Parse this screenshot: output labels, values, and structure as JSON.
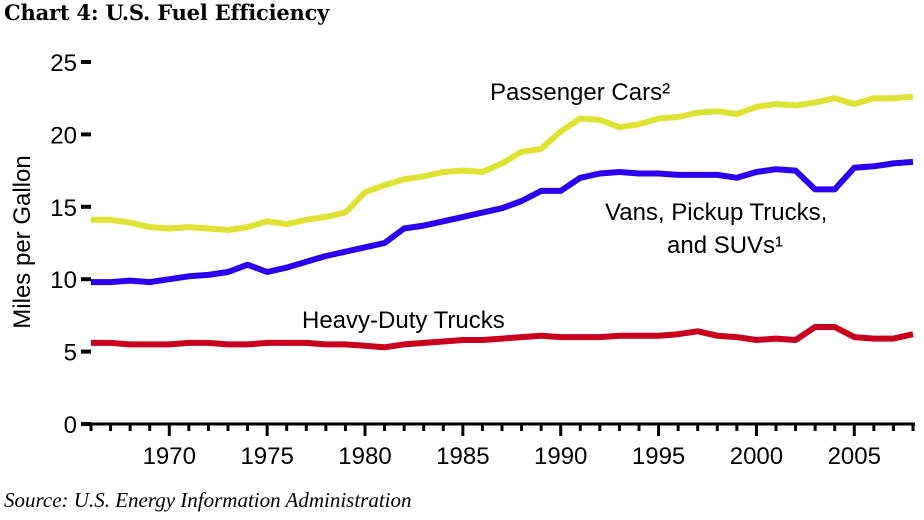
{
  "header": {
    "title": "Chart 4:  U.S. Fuel Efficiency"
  },
  "footer": {
    "source": "Source: U.S. Energy Information Administration"
  },
  "chart_data": {
    "type": "line",
    "title": "Chart 4:  U.S. Fuel Efficiency",
    "xlabel": "",
    "ylabel": "Miles per Gallon",
    "xlim": [
      1966,
      2008
    ],
    "ylim": [
      0,
      25
    ],
    "grid": false,
    "legend": "inline labels",
    "yticks": [
      "0",
      "5",
      "10",
      "15",
      "20",
      "25"
    ],
    "ytick_values": [
      0,
      5,
      10,
      15,
      20,
      25
    ],
    "xticks": [
      "1970",
      "1975",
      "1980",
      "1985",
      "1990",
      "1995",
      "2000",
      "2005"
    ],
    "xtick_values": [
      1970,
      1975,
      1980,
      1985,
      1990,
      1995,
      2000,
      2005
    ],
    "x": [
      1966,
      1967,
      1968,
      1969,
      1970,
      1971,
      1972,
      1973,
      1974,
      1975,
      1976,
      1977,
      1978,
      1979,
      1980,
      1981,
      1982,
      1983,
      1984,
      1985,
      1986,
      1987,
      1988,
      1989,
      1990,
      1991,
      1992,
      1993,
      1994,
      1995,
      1996,
      1997,
      1998,
      1999,
      2000,
      2001,
      2002,
      2003,
      2004,
      2005,
      2006,
      2007,
      2008
    ],
    "series": [
      {
        "name": "Passenger Cars",
        "label_line1": "Passenger Cars²",
        "color": "#dde234",
        "values": [
          14.1,
          14.1,
          13.9,
          13.6,
          13.5,
          13.6,
          13.5,
          13.4,
          13.6,
          14.0,
          13.8,
          14.1,
          14.3,
          14.6,
          16.0,
          16.5,
          16.9,
          17.1,
          17.4,
          17.5,
          17.4,
          18.0,
          18.8,
          19.0,
          20.2,
          21.1,
          21.0,
          20.5,
          20.7,
          21.1,
          21.2,
          21.5,
          21.6,
          21.4,
          21.9,
          22.1,
          22.0,
          22.2,
          22.5,
          22.1,
          22.5,
          22.5,
          22.6
        ]
      },
      {
        "name": "Vans, Pickup Trucks, and SUVs",
        "label_line1": "Vans, Pickup Trucks,",
        "label_line2": "and SUVs¹",
        "color": "#2a00ee",
        "values": [
          9.8,
          9.8,
          9.9,
          9.8,
          10.0,
          10.2,
          10.3,
          10.5,
          11.0,
          10.5,
          10.8,
          11.2,
          11.6,
          11.9,
          12.2,
          12.5,
          13.5,
          13.7,
          14.0,
          14.3,
          14.6,
          14.9,
          15.4,
          16.1,
          16.1,
          17.0,
          17.3,
          17.4,
          17.3,
          17.3,
          17.2,
          17.2,
          17.2,
          17.0,
          17.4,
          17.6,
          17.5,
          16.2,
          16.2,
          17.7,
          17.8,
          18.0,
          18.1
        ]
      },
      {
        "name": "Heavy-Duty Trucks",
        "label_line1": "Heavy-Duty Trucks",
        "color": "#c8001e",
        "values": [
          5.6,
          5.6,
          5.5,
          5.5,
          5.5,
          5.6,
          5.6,
          5.5,
          5.5,
          5.6,
          5.6,
          5.6,
          5.5,
          5.5,
          5.4,
          5.3,
          5.5,
          5.6,
          5.7,
          5.8,
          5.8,
          5.9,
          6.0,
          6.1,
          6.0,
          6.0,
          6.0,
          6.1,
          6.1,
          6.1,
          6.2,
          6.4,
          6.1,
          6.0,
          5.8,
          5.9,
          5.8,
          6.7,
          6.7,
          6.0,
          5.9,
          5.9,
          6.2
        ]
      }
    ]
  }
}
